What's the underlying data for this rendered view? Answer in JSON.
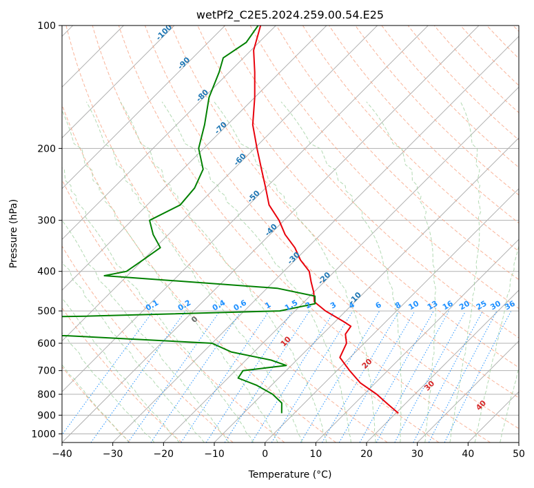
{
  "chart_data": {
    "type": "line",
    "subtype": "skew-t log-p diagram",
    "title": "wetPf2_C2E5.2024.259.00.54.E25",
    "xlabel": "Temperature (°C)",
    "ylabel": "Pressure (hPa)",
    "xlim": [
      -40,
      50
    ],
    "ylim": [
      1050,
      100
    ],
    "yscale": "log",
    "grid": true,
    "xticks": [
      "−40",
      "−30",
      "−20",
      "−10",
      "0",
      "10",
      "20",
      "30",
      "40",
      "50"
    ],
    "yticks": [
      "100",
      "200",
      "300",
      "400",
      "500",
      "600",
      "700",
      "800",
      "900",
      "1000"
    ],
    "series": [
      {
        "kind": "temperature",
        "color": "#e8000b",
        "points": [
          {
            "p": 100,
            "t": -83.0
          },
          {
            "p": 115,
            "t": -79.5
          },
          {
            "p": 130,
            "t": -75.0
          },
          {
            "p": 150,
            "t": -70.0
          },
          {
            "p": 175,
            "t": -65.0
          },
          {
            "p": 200,
            "t": -59.5
          },
          {
            "p": 225,
            "t": -54.5
          },
          {
            "p": 250,
            "t": -50.0
          },
          {
            "p": 275,
            "t": -46.0
          },
          {
            "p": 300,
            "t": -41.0
          },
          {
            "p": 325,
            "t": -37.0
          },
          {
            "p": 350,
            "t": -32.5
          },
          {
            "p": 375,
            "t": -29.0
          },
          {
            "p": 400,
            "t": -25.0
          },
          {
            "p": 425,
            "t": -22.5
          },
          {
            "p": 450,
            "t": -20.0
          },
          {
            "p": 475,
            "t": -18.0
          },
          {
            "p": 500,
            "t": -14.0
          },
          {
            "p": 530,
            "t": -8.5
          },
          {
            "p": 545,
            "t": -6.0
          },
          {
            "p": 570,
            "t": -5.5
          },
          {
            "p": 600,
            "t": -3.5
          },
          {
            "p": 650,
            "t": -2.0
          },
          {
            "p": 700,
            "t": 2.5
          },
          {
            "p": 750,
            "t": 7.0
          },
          {
            "p": 800,
            "t": 12.5
          },
          {
            "p": 850,
            "t": 17.0
          },
          {
            "p": 890,
            "t": 20.5
          }
        ]
      },
      {
        "kind": "dewpoint",
        "color": "#008000",
        "points": [
          {
            "p": 100,
            "t": -83.5
          },
          {
            "p": 110,
            "t": -82.5
          },
          {
            "p": 120,
            "t": -84.0
          },
          {
            "p": 130,
            "t": -82.0
          },
          {
            "p": 150,
            "t": -79.0
          },
          {
            "p": 175,
            "t": -74.5
          },
          {
            "p": 200,
            "t": -71.0
          },
          {
            "p": 225,
            "t": -66.0
          },
          {
            "p": 250,
            "t": -64.0
          },
          {
            "p": 275,
            "t": -63.5
          },
          {
            "p": 300,
            "t": -66.5
          },
          {
            "p": 325,
            "t": -63.0
          },
          {
            "p": 350,
            "t": -59.0
          },
          {
            "p": 375,
            "t": -60.0
          },
          {
            "p": 400,
            "t": -61.0
          },
          {
            "p": 410,
            "t": -64.5
          },
          {
            "p": 420,
            "t": -52.0
          },
          {
            "p": 440,
            "t": -28.0
          },
          {
            "p": 460,
            "t": -19.0
          },
          {
            "p": 480,
            "t": -17.5
          },
          {
            "p": 500,
            "t": -23.0
          },
          {
            "p": 515,
            "t": -60.0
          },
          {
            "p": 530,
            "t": -120.0
          },
          {
            "p": 560,
            "t": -120.0
          },
          {
            "p": 575,
            "t": -60.0
          },
          {
            "p": 600,
            "t": -30.0
          },
          {
            "p": 630,
            "t": -24.5
          },
          {
            "p": 660,
            "t": -15.0
          },
          {
            "p": 680,
            "t": -11.0
          },
          {
            "p": 700,
            "t": -18.5
          },
          {
            "p": 730,
            "t": -18.0
          },
          {
            "p": 760,
            "t": -13.0
          },
          {
            "p": 800,
            "t": -8.0
          },
          {
            "p": 840,
            "t": -4.5
          },
          {
            "p": 890,
            "t": -2.5
          }
        ]
      }
    ],
    "annotations": {
      "dry_adiabats": [
        "-100",
        "-90",
        "-80",
        "-70",
        "-60",
        "-50",
        "-40",
        "-30",
        "-20",
        "-10"
      ],
      "dry_adiabats_color": "#1f77b4",
      "mixing_ratio": [
        "0.1",
        "0.2",
        "0.4",
        "0.6",
        "1",
        "1.5",
        "2",
        "3",
        "4",
        "6",
        "8",
        "10",
        "13",
        "16",
        "20",
        "25",
        "30",
        "36"
      ],
      "mixing_ratio_color": "#1e90ff",
      "moist_adiabats": [
        "0",
        "10",
        "20",
        "30",
        "40"
      ],
      "moist_adiabats_zero_color": "#696969",
      "moist_adiabats_color": "#d62728"
    }
  }
}
